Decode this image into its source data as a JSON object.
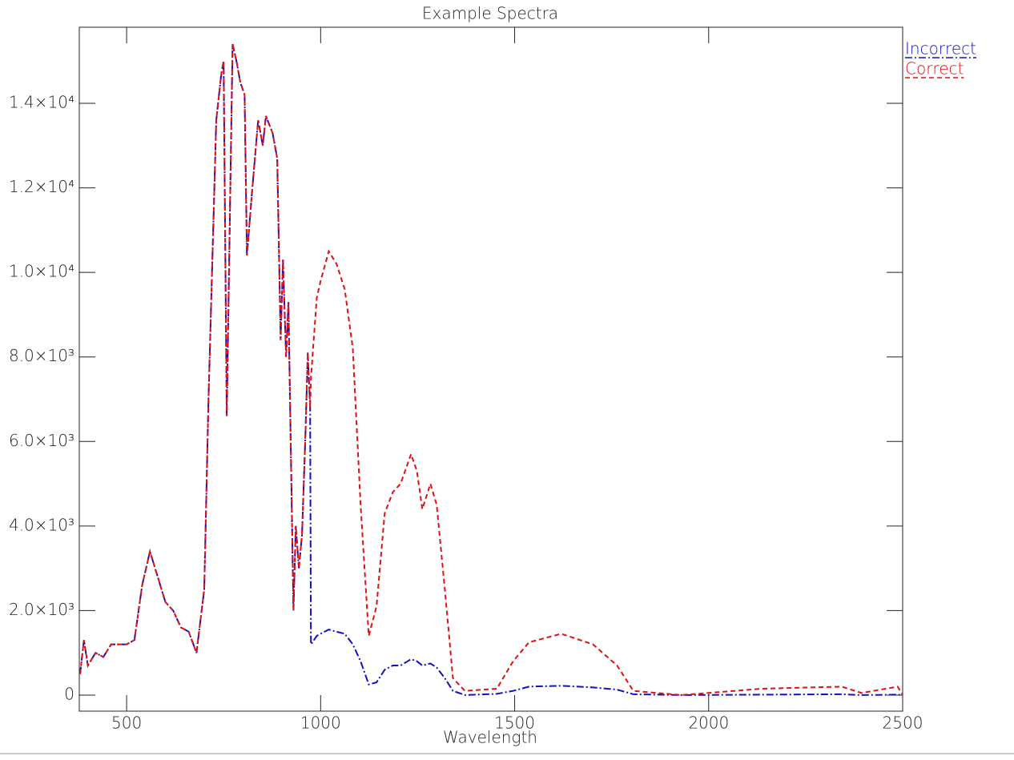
{
  "chart_data": {
    "type": "line",
    "title": "Example Spectra",
    "x_label": "Wavelength",
    "xlim": [
      378,
      2500
    ],
    "ylim": [
      -380,
      15800
    ],
    "xticks": [
      500,
      1000,
      1500,
      2000,
      2500
    ],
    "yticks": [
      0,
      {
        "value": 2000,
        "label": "2.0×10³"
      },
      {
        "value": 4000,
        "label": "4.0×10³"
      },
      {
        "value": 6000,
        "label": "6.0×10³"
      },
      {
        "value": 8000,
        "label": "8.0×10³"
      },
      {
        "value": 10000,
        "label": "1.0×10⁴"
      },
      {
        "value": 12000,
        "label": "1.2×10⁴"
      },
      {
        "value": 14000,
        "label": "1.4×10⁴"
      }
    ],
    "grid": false,
    "legend": "top-right",
    "x": [
      380,
      390,
      400,
      420,
      440,
      460,
      500,
      520,
      540,
      560,
      580,
      600,
      620,
      640,
      660,
      680,
      700,
      711,
      731,
      744,
      750,
      758,
      773,
      783,
      793,
      804,
      810,
      824,
      839,
      851,
      859,
      876,
      888,
      897,
      903,
      911,
      917,
      930,
      936,
      944,
      952,
      961,
      967,
      973,
      975,
      990,
      1000,
      1021,
      1041,
      1062,
      1083,
      1103,
      1124,
      1144,
      1165,
      1186,
      1206,
      1233,
      1248,
      1262,
      1283,
      1299,
      1320,
      1341,
      1372,
      1454,
      1496,
      1537,
      1620,
      1702,
      1764,
      1806,
      1930,
      2136,
      2343,
      2394,
      2487,
      2500
    ],
    "series": [
      {
        "name": "Incorrect",
        "color": "#1010c8",
        "dash": "9,3,2,3",
        "values": [
          500,
          1300,
          700,
          1000,
          900,
          1200,
          1200,
          1300,
          2600,
          3400,
          2800,
          2200,
          2000,
          1600,
          1500,
          1000,
          2500,
          7000,
          13600,
          14700,
          15000,
          6600,
          15400,
          15000,
          14500,
          14200,
          10400,
          12000,
          13600,
          13000,
          13700,
          13300,
          12700,
          8400,
          10300,
          8000,
          9300,
          2000,
          4000,
          3000,
          3800,
          6200,
          8100,
          6800,
          1200,
          1400,
          1450,
          1550,
          1500,
          1450,
          1200,
          800,
          250,
          300,
          600,
          700,
          700,
          850,
          800,
          700,
          750,
          650,
          400,
          100,
          0,
          30,
          100,
          200,
          220,
          180,
          130,
          20,
          0,
          10,
          20,
          0,
          10,
          0
        ]
      },
      {
        "name": "Correct",
        "color": "#e01010",
        "dash": "6,4",
        "values": [
          500,
          1300,
          700,
          1000,
          900,
          1200,
          1200,
          1300,
          2600,
          3400,
          2800,
          2200,
          2000,
          1600,
          1500,
          1000,
          2500,
          7000,
          13600,
          14700,
          15000,
          6600,
          15400,
          15000,
          14500,
          14200,
          10400,
          12000,
          13600,
          13000,
          13700,
          13300,
          12700,
          8400,
          10300,
          8000,
          9300,
          2000,
          4000,
          3000,
          3800,
          6200,
          8100,
          6800,
          7500,
          9400,
          9800,
          10500,
          10200,
          9600,
          8200,
          4500,
          1400,
          2100,
          4300,
          4800,
          5000,
          5700,
          5300,
          4400,
          5000,
          4500,
          2500,
          400,
          100,
          150,
          800,
          1250,
          1450,
          1200,
          700,
          100,
          0,
          150,
          200,
          50,
          200,
          0
        ]
      }
    ]
  }
}
